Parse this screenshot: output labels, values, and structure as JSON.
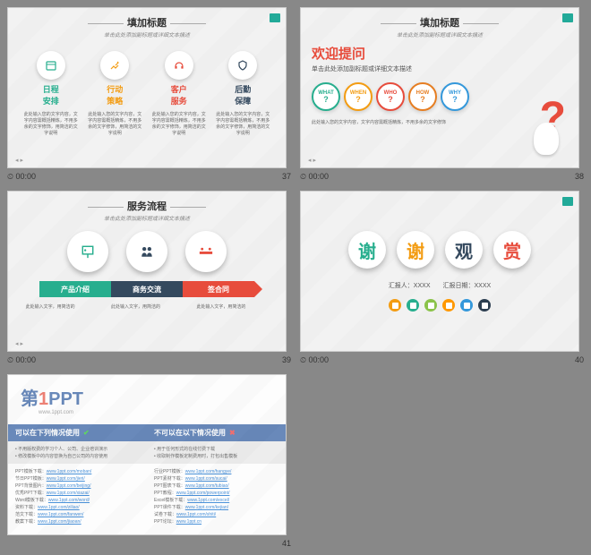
{
  "slides": {
    "s37": {
      "title": "填加标题",
      "sub": "单击此处添加副标题或详细文本描述",
      "num": "37",
      "time": "00:00",
      "items": [
        {
          "label": "日程\n安排",
          "color": "#27ae8e",
          "icon": "calendar"
        },
        {
          "label": "行动\n策略",
          "color": "#f39c12",
          "icon": "tools"
        },
        {
          "label": "客户\n服务",
          "color": "#e74c3c",
          "icon": "headset"
        },
        {
          "label": "后勤\n保障",
          "color": "#34495e",
          "icon": "shield"
        }
      ],
      "desc": "此处输入您的文字内容，文字内容需概括精炼，不用多余的文字修饰，用简洁的文字说明"
    },
    "s38": {
      "title": "填加标题",
      "sub": "单击此处添加副标题或详细文本描述",
      "num": "38",
      "time": "00:00",
      "welcome": "欢迎提问",
      "welcomeSub": "单击此处添加副标题或详细文本描述",
      "circles": [
        {
          "t": "WHAT",
          "c": "#27ae8e"
        },
        {
          "t": "WHEN",
          "c": "#f39c12"
        },
        {
          "t": "WHO",
          "c": "#e74c3c"
        },
        {
          "t": "HOW",
          "c": "#e67e22"
        },
        {
          "t": "WHY",
          "c": "#3498db"
        }
      ],
      "desc": "此处输入您的文字内容，文字内容需概括精炼，不用多余的文字修饰"
    },
    "s39": {
      "title": "服务流程",
      "sub": "单击此处添加副标题或详细文本描述",
      "num": "39",
      "time": "00:00",
      "circles": [
        {
          "c": "#27ae8e",
          "icon": "present"
        },
        {
          "c": "#34495e",
          "icon": "people"
        },
        {
          "c": "#e74c3c",
          "icon": "meeting"
        }
      ],
      "arrows": [
        {
          "t": "产品介绍",
          "c": "#27ae8e"
        },
        {
          "t": "商务交流",
          "c": "#34495e"
        },
        {
          "t": "签合同",
          "c": "#e74c3c"
        }
      ],
      "desc": "此处输入文字，用简洁的"
    },
    "s40": {
      "num": "40",
      "time": "00:00",
      "chars": [
        {
          "t": "谢",
          "c": "#27ae8e"
        },
        {
          "t": "谢",
          "c": "#f39c12"
        },
        {
          "t": "观",
          "c": "#34495e"
        },
        {
          "t": "赏",
          "c": "#e74c3c"
        }
      ],
      "sub": "汇报人：XXXX　　汇报日期：XXXX",
      "social": [
        "#f39c12",
        "#27ae8e",
        "#8bc34a",
        "#ff9800",
        "#3498db",
        "#2c3e50"
      ]
    },
    "s41": {
      "num": "41",
      "logo": {
        "p1": "第",
        "p2": "1",
        "p3": "PPT",
        "url": "www.1ppt.com"
      },
      "colors": {
        "p1": "#2c5aa0",
        "p2": "#e74c3c",
        "p3": "#2c5aa0"
      },
      "left": {
        "hdr": "可以在下列情况使用",
        "hdrBg": "#2c5aa0",
        "items": [
          "不用版权费的学习个人、公司、企业培训演示",
          "修改模板中的内容替换为自己公司的内容使用"
        ]
      },
      "right": {
        "hdr": "不可以在以下情况使用",
        "hdrBg": "#2c5aa0",
        "items": [
          "用于任何形式的在线付费下载",
          "收取制作模板定制费用时，打包出售模板"
        ]
      },
      "links": [
        {
          "l": "PPT模板下载",
          "u": "www.1ppt.com/moban/"
        },
        {
          "l": "节日PPT模板",
          "u": "www.1ppt.com/jieri/"
        },
        {
          "l": "PPT背景图片",
          "u": "www.1ppt.com/beijing/"
        },
        {
          "l": "优秀PPT下载",
          "u": "www.1ppt.com/xiazai/"
        },
        {
          "l": "Word模板下载",
          "u": "www.1ppt.com/word/"
        },
        {
          "l": "资料下载",
          "u": "www.1ppt.com/ziliao/"
        },
        {
          "l": "范文下载",
          "u": "www.1ppt.com/fanwen/"
        },
        {
          "l": "教案下载",
          "u": "www.1ppt.com/jiaoan/"
        }
      ],
      "links2": [
        {
          "l": "行业PPT模板",
          "u": "www.1ppt.com/hangye/"
        },
        {
          "l": "PPT素材下载",
          "u": "www.1ppt.com/sucai/"
        },
        {
          "l": "PPT图表下载",
          "u": "www.1ppt.com/tubiao/"
        },
        {
          "l": "PPT教程",
          "u": "www.1ppt.com/powerpoint/"
        },
        {
          "l": "Excel模板下载",
          "u": "www.1ppt.com/excel/"
        },
        {
          "l": "PPT课件下载",
          "u": "www.1ppt.com/kejian/"
        },
        {
          "l": "试卷下载",
          "u": "www.1ppt.com/shiti/"
        },
        {
          "l": "PPT论坛",
          "u": "www.1ppt.cn"
        }
      ]
    }
  }
}
